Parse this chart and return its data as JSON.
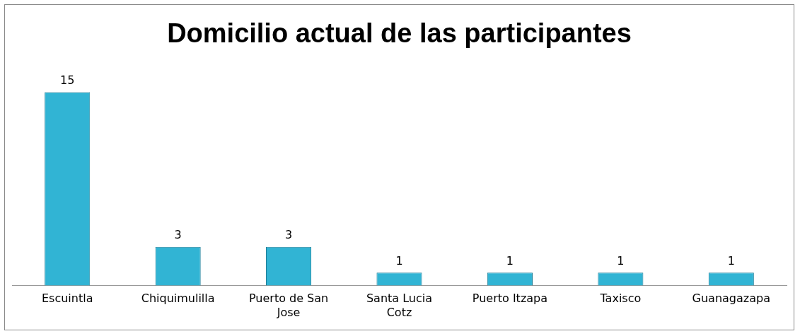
{
  "chart_data": {
    "type": "bar",
    "title": "Domicilio actual de las participantes",
    "categories": [
      "Escuintla",
      "Chiquimulilla",
      "Puerto de San Jose",
      "Santa Lucia Cotz",
      "Puerto Itzapa",
      "Taxisco",
      "Guanagazapa"
    ],
    "values": [
      15,
      3,
      3,
      1,
      1,
      1,
      1
    ],
    "color": "#31b4d4",
    "tick_labels": "x",
    "data_labels": true,
    "grid": false,
    "legend": false
  }
}
